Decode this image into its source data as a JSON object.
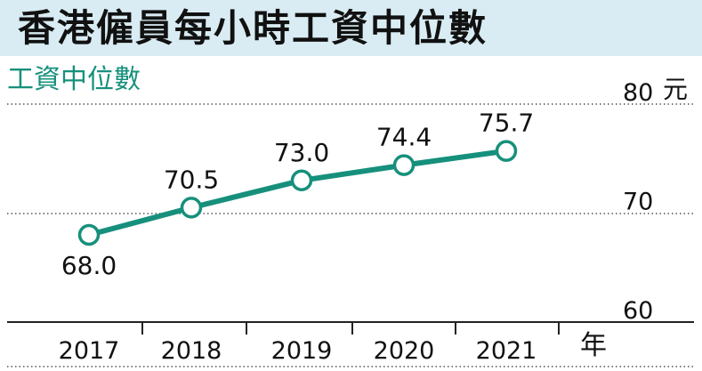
{
  "title": "香港僱員每小時工資中位數",
  "chart_data": {
    "type": "line",
    "title": "香港僱員每小時工資中位數",
    "ylabel": "工資中位數",
    "y_unit": "元",
    "x_unit": "年",
    "categories": [
      "2017",
      "2018",
      "2019",
      "2020",
      "2021"
    ],
    "values": [
      68.0,
      70.5,
      73.0,
      74.4,
      75.7
    ],
    "value_labels": [
      "68.0",
      "70.5",
      "73.0",
      "74.4",
      "75.7"
    ],
    "ylim": [
      60,
      80
    ],
    "yticks": [
      "60",
      "70",
      "80"
    ],
    "grid": true,
    "line_color": "#16907c"
  }
}
